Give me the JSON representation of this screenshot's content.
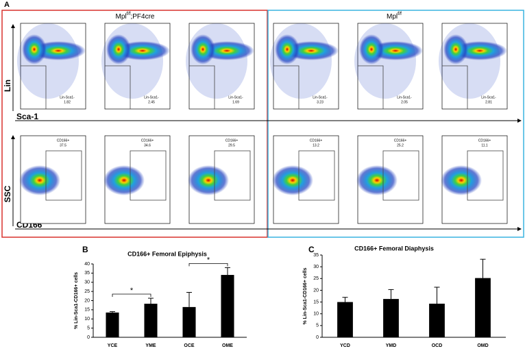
{
  "panel_labels": [
    "A",
    "B",
    "C"
  ],
  "groups": [
    {
      "name": "Mpl",
      "sup": "f/f",
      "suffix": ";PF4cre"
    },
    {
      "name": "Mpl",
      "sup": "f/f"
    }
  ],
  "axis_labels": {
    "lin": "Lin",
    "sca1": "Sca-1",
    "ssc": "SSC",
    "cd166": "CD166"
  },
  "flow": {
    "top_gate": "Lin-Sca1-",
    "top_values": [
      "1.82",
      "2.45",
      "1.69",
      "3.23",
      "2.05",
      "2.81"
    ],
    "bottom_gate": "CD166+",
    "bottom_values": [
      "37.5",
      "34.6",
      "29.5",
      "13.2",
      "25.2",
      "11.1"
    ]
  },
  "chart_data": [
    {
      "type": "bar",
      "title": "CD166+ Femoral Epiphysis",
      "y_label": "% Lin-Sca1-CD166+ cells",
      "categories": [
        "YCE",
        "YME",
        "OCE",
        "OME"
      ],
      "values": [
        13.5,
        18.3,
        16.5,
        34
      ],
      "errors": [
        0.5,
        3,
        8,
        4
      ],
      "color": "#000000",
      "ylim": [
        0,
        40
      ],
      "yticks": [
        0,
        5,
        10,
        15,
        20,
        25,
        30,
        35,
        40
      ],
      "annotations": [
        "*",
        "*"
      ]
    },
    {
      "type": "bar",
      "title": "CD166+ Femoral Diaphysis",
      "y_label": "% Lin-Sca1-CD166+ cells",
      "categories": [
        "YCD",
        "YMD",
        "OCD",
        "OMD"
      ],
      "values": [
        15,
        16.3,
        14.3,
        25.2
      ],
      "errors": [
        2,
        4,
        7,
        8
      ],
      "color": "#000000",
      "ylim": [
        0,
        35
      ],
      "yticks": [
        0,
        5,
        10,
        15,
        20,
        25,
        30,
        35
      ]
    }
  ]
}
